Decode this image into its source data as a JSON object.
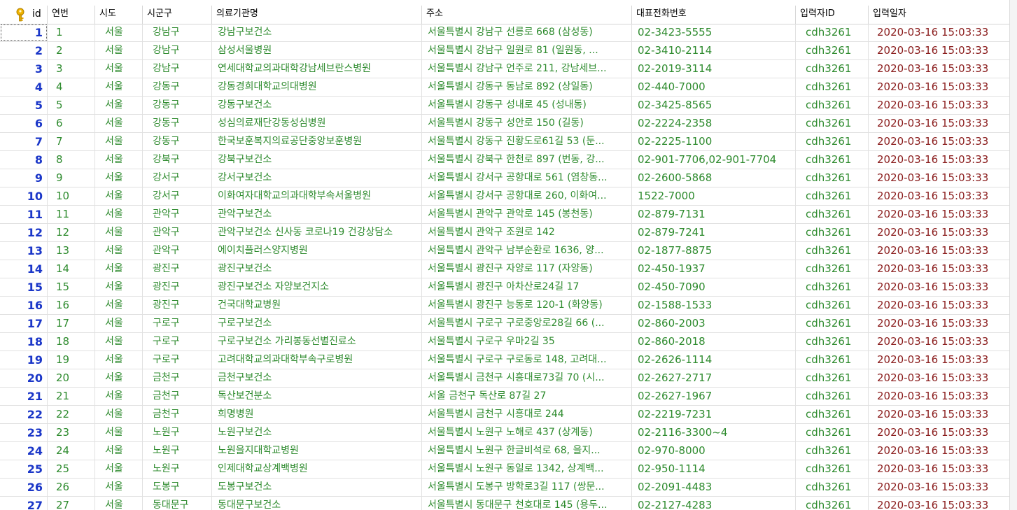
{
  "columns": [
    "id",
    "연번",
    "시도",
    "시군구",
    "의료기관명",
    "주소",
    "대표전화번호",
    "입력자ID",
    "입력일자"
  ],
  "rows": [
    [
      "1",
      "1",
      "서울",
      "강남구",
      "강남구보건소",
      "서울특별시 강남구 선릉로 668 (삼성동)",
      "02-3423-5555",
      "cdh3261",
      "2020-03-16 15:03:33"
    ],
    [
      "2",
      "2",
      "서울",
      "강남구",
      "삼성서울병원",
      "서울특별시 강남구 일원로 81 (일원동, ...",
      "02-3410-2114",
      "cdh3261",
      "2020-03-16 15:03:33"
    ],
    [
      "3",
      "3",
      "서울",
      "강남구",
      "연세대학교의과대학강남세브란스병원",
      "서울특별시 강남구 언주로 211, 강남세브...",
      "02-2019-3114",
      "cdh3261",
      "2020-03-16 15:03:33"
    ],
    [
      "4",
      "4",
      "서울",
      "강동구",
      "강동경희대학교의대병원",
      "서울특별시 강동구 동남로 892 (상일동)",
      "02-440-7000",
      "cdh3261",
      "2020-03-16 15:03:33"
    ],
    [
      "5",
      "5",
      "서울",
      "강동구",
      "강동구보건소",
      "서울특별시 강동구 성내로 45 (성내동)",
      "02-3425-8565",
      "cdh3261",
      "2020-03-16 15:03:33"
    ],
    [
      "6",
      "6",
      "서울",
      "강동구",
      "성심의료재단강동성심병원",
      "서울특별시 강동구 성안로 150 (길동)",
      "02-2224-2358",
      "cdh3261",
      "2020-03-16 15:03:33"
    ],
    [
      "7",
      "7",
      "서울",
      "강동구",
      "한국보훈복지의료공단중앙보훈병원",
      "서울특별시 강동구 진황도로61길 53 (둔...",
      "02-2225-1100",
      "cdh3261",
      "2020-03-16 15:03:33"
    ],
    [
      "8",
      "8",
      "서울",
      "강북구",
      "강북구보건소",
      "서울특별시 강북구 한천로 897 (번동, 강...",
      "02-901-7706,02-901-7704",
      "cdh3261",
      "2020-03-16 15:03:33"
    ],
    [
      "9",
      "9",
      "서울",
      "강서구",
      "강서구보건소",
      "서울특별시 강서구 공항대로 561 (염창동...",
      "02-2600-5868",
      "cdh3261",
      "2020-03-16 15:03:33"
    ],
    [
      "10",
      "10",
      "서울",
      "강서구",
      "이화여자대학교의과대학부속서울병원",
      "서울특별시 강서구 공항대로 260, 이화여...",
      "1522-7000",
      "cdh3261",
      "2020-03-16 15:03:33"
    ],
    [
      "11",
      "11",
      "서울",
      "관악구",
      "관악구보건소",
      "서울특별시 관악구 관악로 145 (봉천동)",
      "02-879-7131",
      "cdh3261",
      "2020-03-16 15:03:33"
    ],
    [
      "12",
      "12",
      "서울",
      "관악구",
      "관악구보건소 신사동 코로나19 건강상담소",
      "서울특별시 관악구 조원로 142",
      "02-879-7241",
      "cdh3261",
      "2020-03-16 15:03:33"
    ],
    [
      "13",
      "13",
      "서울",
      "관악구",
      "에이치플러스양지병원",
      "서울특별시 관악구 남부순환로 1636, 양...",
      "02-1877-8875",
      "cdh3261",
      "2020-03-16 15:03:33"
    ],
    [
      "14",
      "14",
      "서울",
      "광진구",
      "광진구보건소",
      "서울특별시 광진구 자양로 117 (자양동)",
      "02-450-1937",
      "cdh3261",
      "2020-03-16 15:03:33"
    ],
    [
      "15",
      "15",
      "서울",
      "광진구",
      "광진구보건소 자양보건지소",
      "서울특별시 광진구 아차산로24길 17",
      "02-450-7090",
      "cdh3261",
      "2020-03-16 15:03:33"
    ],
    [
      "16",
      "16",
      "서울",
      "광진구",
      "건국대학교병원",
      "서울특별시 광진구 능동로 120-1 (화양동)",
      "02-1588-1533",
      "cdh3261",
      "2020-03-16 15:03:33"
    ],
    [
      "17",
      "17",
      "서울",
      "구로구",
      "구로구보건소",
      "서울특별시 구로구 구로중앙로28길 66 (...",
      "02-860-2003",
      "cdh3261",
      "2020-03-16 15:03:33"
    ],
    [
      "18",
      "18",
      "서울",
      "구로구",
      "구로구보건소 가리봉동선별진료소",
      "서울특별시 구로구 우마2길 35",
      "02-860-2018",
      "cdh3261",
      "2020-03-16 15:03:33"
    ],
    [
      "19",
      "19",
      "서울",
      "구로구",
      "고려대학교의과대학부속구로병원",
      "서울특별시 구로구 구로동로 148, 고려대...",
      "02-2626-1114",
      "cdh3261",
      "2020-03-16 15:03:33"
    ],
    [
      "20",
      "20",
      "서울",
      "금천구",
      "금천구보건소",
      "서울특별시 금천구 시흥대로73길 70 (시...",
      "02-2627-2717",
      "cdh3261",
      "2020-03-16 15:03:33"
    ],
    [
      "21",
      "21",
      "서울",
      "금천구",
      "독산보건분소",
      "서울 금천구 독산로 87길 27",
      "02-2627-1967",
      "cdh3261",
      "2020-03-16 15:03:33"
    ],
    [
      "22",
      "22",
      "서울",
      "금천구",
      "희명병원",
      "서울특별시 금천구 시흥대로 244",
      "02-2219-7231",
      "cdh3261",
      "2020-03-16 15:03:33"
    ],
    [
      "23",
      "23",
      "서울",
      "노원구",
      "노원구보건소",
      "서울특별시 노원구 노해로 437 (상계동)",
      "02-2116-3300~4",
      "cdh3261",
      "2020-03-16 15:03:33"
    ],
    [
      "24",
      "24",
      "서울",
      "노원구",
      "노원을지대학교병원",
      "서울특별시 노원구 한글비석로 68, 을지...",
      "02-970-8000",
      "cdh3261",
      "2020-03-16 15:03:33"
    ],
    [
      "25",
      "25",
      "서울",
      "노원구",
      "인제대학교상계백병원",
      "서울특별시 노원구 동일로 1342, 상계백...",
      "02-950-1114",
      "cdh3261",
      "2020-03-16 15:03:33"
    ],
    [
      "26",
      "26",
      "서울",
      "도봉구",
      "도봉구보건소",
      "서울특별시 도봉구 방학로3길 117 (쌍문...",
      "02-2091-4483",
      "cdh3261",
      "2020-03-16 15:03:33"
    ],
    [
      "27",
      "27",
      "서울",
      "동대문구",
      "동대문구보건소",
      "서울특별시 동대문구 천호대로 145 (용두...",
      "02-2127-4283",
      "cdh3261",
      "2020-03-16 15:03:33"
    ]
  ]
}
